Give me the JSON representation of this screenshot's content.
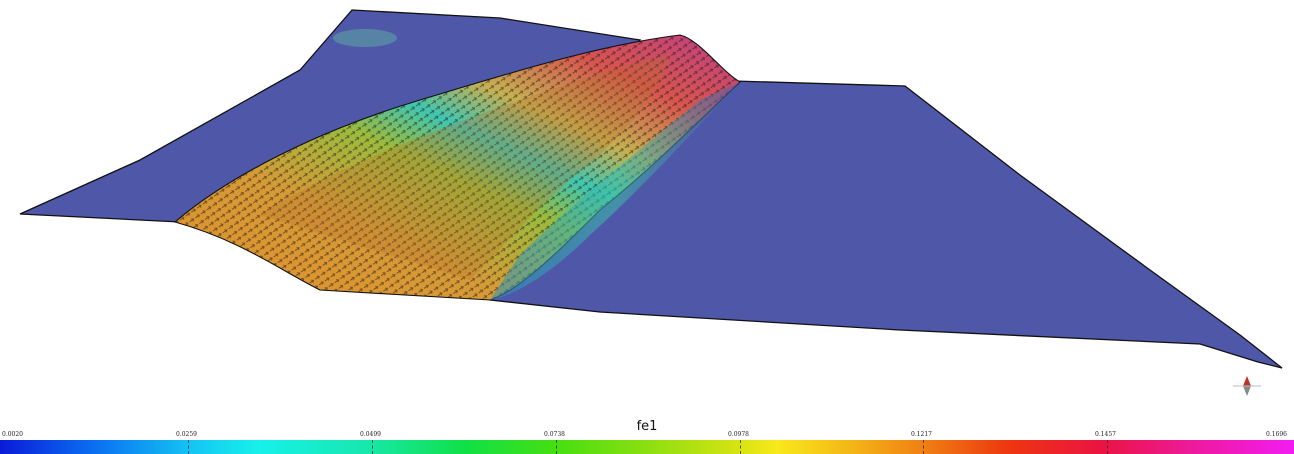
{
  "viewer": {
    "field_name": "fe1",
    "colormap": {
      "ticks": [
        "0.0020",
        "0.0259",
        "0.0499",
        "0.0738",
        "0.0978",
        "0.1217",
        "0.1457",
        "0.1696"
      ]
    },
    "colors": {
      "surface": "#4f57a8",
      "outline": "#111111",
      "background": "#ffffff"
    },
    "compass_icon": "orientation-triad-icon"
  }
}
